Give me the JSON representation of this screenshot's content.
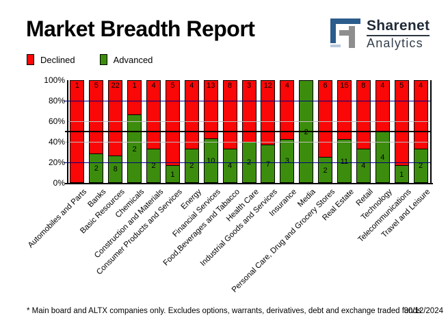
{
  "header": {
    "title": "Market Breadth Report",
    "logo": {
      "brand": "Sharenet",
      "sub": "Analytics"
    }
  },
  "legend": [
    {
      "label": "Declined",
      "color": "#fa0707"
    },
    {
      "label": "Advanced",
      "color": "#3c8d0d"
    }
  ],
  "chart_data": {
    "type": "bar",
    "stacked": true,
    "normalized": "percent",
    "title": "Market Breadth Report",
    "categories": [
      "Automobiles and Parts",
      "Banks",
      "Basic Resources",
      "Chemicals",
      "Construction and Materials",
      "Consumer Products and Services",
      "Energy",
      "Financial Services",
      "Food,Beverages and Tabacco",
      "Health Care",
      "Industrial Goods and Services",
      "Insurance",
      "Media",
      "Personal Care, Drug and Grocery Stores",
      "Real Estate",
      "Retail",
      "Technology",
      "Telecommunications",
      "Travel and Leisure"
    ],
    "series": [
      {
        "name": "Declined",
        "color": "#fa0707",
        "values": [
          1,
          5,
          22,
          1,
          4,
          5,
          4,
          13,
          8,
          3,
          12,
          4,
          0,
          6,
          15,
          8,
          4,
          5,
          4
        ]
      },
      {
        "name": "Advanced",
        "color": "#3c8d0d",
        "values": [
          0,
          2,
          8,
          2,
          2,
          1,
          2,
          10,
          4,
          2,
          7,
          3,
          2,
          2,
          11,
          4,
          4,
          1,
          2
        ]
      }
    ],
    "y_ticks": [
      "100%",
      "80%",
      "60%",
      "40%",
      "20%",
      "0%"
    ],
    "ylim": [
      0,
      100
    ],
    "legend_position": "top-left",
    "gridlines": [
      {
        "pct": 80,
        "color": "#000080",
        "thick": 1,
        "tick": true
      },
      {
        "pct": 60,
        "color": "#c0c0c0",
        "thick": 1,
        "tick": false
      },
      {
        "pct": 50,
        "color": "#000000",
        "thick": 2,
        "tick": true
      },
      {
        "pct": 40,
        "color": "#c0c0c0",
        "thick": 1,
        "tick": true
      },
      {
        "pct": 20,
        "color": "#000080",
        "thick": 1,
        "tick": true
      }
    ],
    "value_labels": "counts shown inside segments"
  },
  "colors": {
    "declined": "#fa0707",
    "advanced": "#3c8d0d",
    "grid_major": "#000080",
    "grid_minor": "#c0c0c0",
    "axis": "#000000",
    "logo_blue": "#2b5c8c",
    "logo_gray": "#8e8e8e",
    "logo_light": "#b9c9dc"
  },
  "footer": {
    "note": "* Main board and ALTX companies only. Excludes options, warrants, derivatives, debt and exchange traded funds",
    "date": "30/12/2024"
  }
}
